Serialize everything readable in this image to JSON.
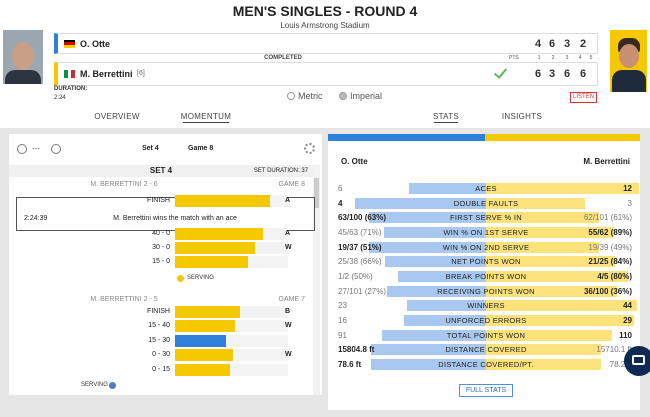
{
  "header": {
    "title": "MEN'S SINGLES - ROUND 4",
    "venue": "Louis Armstrong Stadium"
  },
  "match": {
    "status": "COMPLETED",
    "pts_label": "PTS",
    "set_labels": [
      "1",
      "2",
      "3",
      "4",
      "5"
    ],
    "players": [
      {
        "name": "O. Otte",
        "scores": [
          "4",
          "6",
          "3",
          "2"
        ]
      },
      {
        "name": "M. Berrettini",
        "seed": "[6]",
        "scores": [
          "6",
          "3",
          "6",
          "6"
        ]
      }
    ],
    "duration_label": "DURATION:",
    "duration": "2:24",
    "units": [
      "Metric",
      "Imperial"
    ],
    "listen": "LISTEN"
  },
  "tabs": [
    "OVERVIEW",
    "MOMENTUM",
    "STATS",
    "INSIGHTS"
  ],
  "momentum": {
    "zoom_label": "---",
    "set_select": "Set 4",
    "game_select": "Game 8",
    "set_title": "SET 4",
    "set_duration": "SET DURATION: 37",
    "games": [
      {
        "score": "M. BERRETTINI 2 - 6",
        "game": "GAME 8",
        "points": [
          {
            "score": "FINISH",
            "tag": "A"
          },
          {
            "score": "40 - 0",
            "tag": "A"
          },
          {
            "score": "30 - 0",
            "tag": "W"
          },
          {
            "score": "15 - 0"
          }
        ],
        "detail": {
          "time": "2:24:39",
          "text": "M. Berrettini wins the match with an ace"
        },
        "serving": "SERVING"
      },
      {
        "score": "M. BERRETTINI 2 - 5",
        "game": "GAME 7",
        "points": [
          {
            "score": "FINISH",
            "tag": "B"
          },
          {
            "score": "15 - 40",
            "tag": "W"
          },
          {
            "score": "15 - 30"
          },
          {
            "score": "0 - 30",
            "tag": "W"
          },
          {
            "score": "0 - 15"
          }
        ],
        "serving": "SERVING"
      }
    ]
  },
  "stats": {
    "players": [
      "O. Otte",
      "M. Berrettini"
    ],
    "rows": [
      {
        "label": "ACES",
        "left": "6",
        "right": "12"
      },
      {
        "label": "DOUBLE FAULTS",
        "left": "4",
        "right": "3"
      },
      {
        "label": "FIRST SERVE % IN",
        "left": "63/100 (63%)",
        "right": "62/101 (61%)"
      },
      {
        "label": "WIN % ON 1ST SERVE",
        "left": "45/63 (71%)",
        "right": "55/62 (89%)"
      },
      {
        "label": "WIN % ON 2ND SERVE",
        "left": "19/37 (51%)",
        "right": "19/39 (49%)"
      },
      {
        "label": "NET POINTS WON",
        "left": "25/38 (66%)",
        "right": "21/25 (84%)"
      },
      {
        "label": "BREAK POINTS WON",
        "left": "1/2 (50%)",
        "right": "4/5 (80%)"
      },
      {
        "label": "RECEIVING POINTS WON",
        "left": "27/101 (27%)",
        "right": "36/100 (36%)"
      },
      {
        "label": "WINNERS",
        "left": "23",
        "right": "44"
      },
      {
        "label": "UNFORCED ERRORS",
        "left": "16",
        "right": "29"
      },
      {
        "label": "TOTAL POINTS WON",
        "left": "91",
        "right": "110"
      },
      {
        "label": "DISTANCE COVERED",
        "left": "15804.8 ft",
        "right": "15710.1 ft"
      },
      {
        "label": "DISTANCE COVERED/PT.",
        "left": "78.6 ft",
        "right": "78.2 ft"
      }
    ],
    "full_stats": "FULL STATS"
  }
}
